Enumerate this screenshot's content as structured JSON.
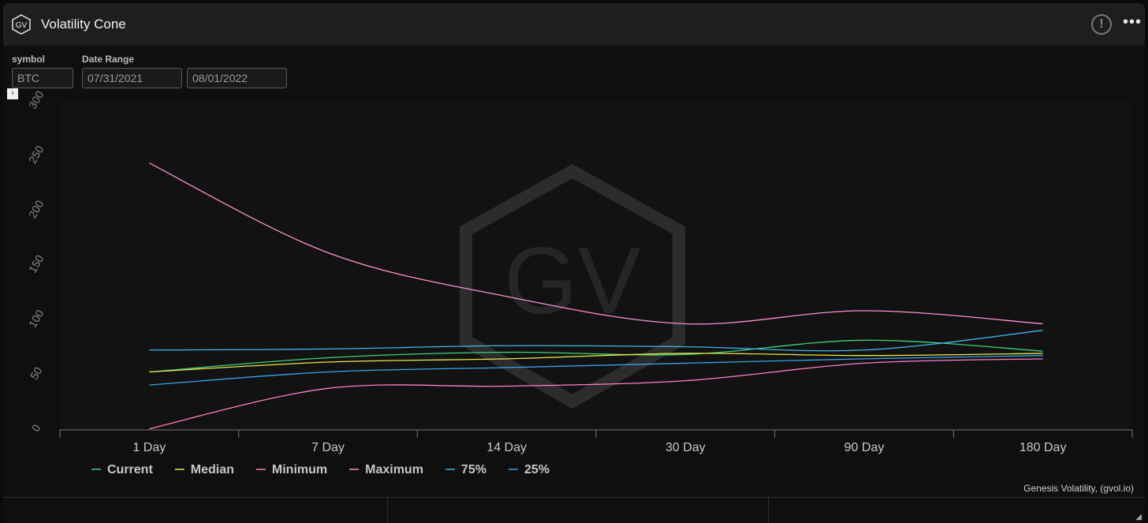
{
  "header": {
    "logo_text": "GV",
    "title": "Volatility Cone",
    "info_icon": "info-icon",
    "more_icon": "more-icon"
  },
  "filters": {
    "symbol_label": "symbol",
    "symbol_value": "BTC",
    "date_range_label": "Date Range",
    "date_start": "07/31/2021",
    "date_end": "08/01/2022"
  },
  "watermark": "GV",
  "credits": "Genesis Volatility, (gvol.io)",
  "footer": {
    "download_icon": "download-icon"
  },
  "chart_data": {
    "type": "line",
    "title": "",
    "xlabel": "",
    "ylabel": "",
    "categories": [
      "1 Day",
      "7 Day",
      "14 Day",
      "30 Day",
      "90 Day",
      "180 Day"
    ],
    "ylim": [
      0,
      300
    ],
    "yticks": [
      0,
      50,
      100,
      150,
      200,
      250,
      300
    ],
    "legend_position": "bottom-left",
    "grid": false,
    "series": [
      {
        "name": "Current",
        "color": "#3ed17a",
        "values": [
          53,
          66,
          71,
          69,
          82,
          72
        ]
      },
      {
        "name": "Median",
        "color": "#e8e84a",
        "values": [
          53,
          62,
          65,
          70,
          68,
          70
        ]
      },
      {
        "name": "Minimum",
        "color": "#ff7fc4",
        "values": [
          1,
          38,
          40,
          45,
          61,
          65
        ]
      },
      {
        "name": "Maximum",
        "color": "#ff8fd0",
        "values": [
          244,
          162,
          122,
          97,
          109,
          97
        ]
      },
      {
        "name": "75%",
        "color": "#3fb6ee",
        "values": [
          73,
          74,
          77,
          76,
          73,
          91
        ]
      },
      {
        "name": "25%",
        "color": "#3aa2e8",
        "values": [
          41,
          53,
          57,
          61,
          65,
          68
        ]
      }
    ]
  }
}
